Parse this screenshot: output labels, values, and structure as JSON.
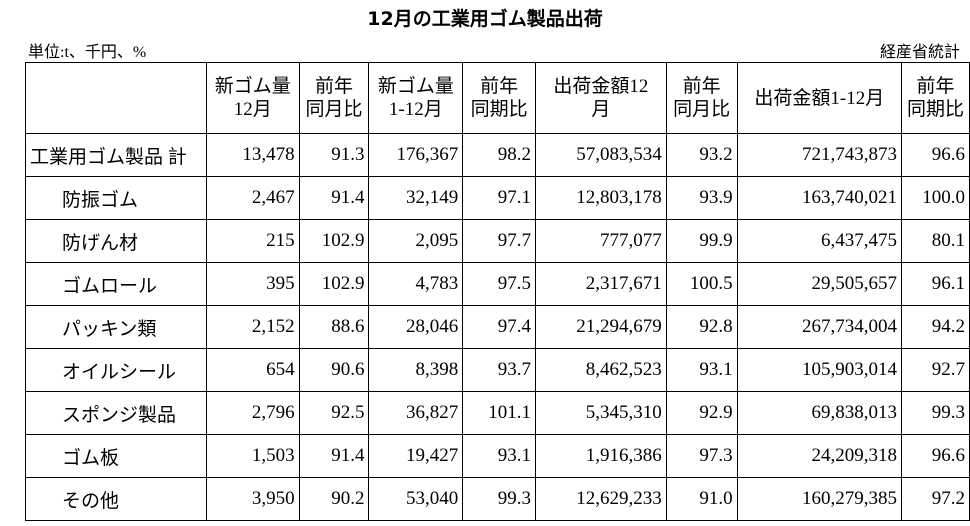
{
  "header": {
    "title": "12月の工業用ゴム製品出荷",
    "unit": "単位:t、千円、%",
    "source": "経産省統計"
  },
  "table": {
    "columns": [
      "",
      "新ゴム量\n12月",
      "前年\n同月比",
      "新ゴム量\n1-12月",
      "前年\n同期比",
      "出荷金額12\n月",
      "前年\n同月比",
      "出荷金額1-12月",
      "前年\n同期比"
    ],
    "rows": [
      [
        "工業用ゴム製品 計",
        "13,478",
        "91.3",
        "176,367",
        "98.2",
        "57,083,534",
        "93.2",
        "721,743,873",
        "96.6"
      ],
      [
        "防振ゴム",
        "2,467",
        "91.4",
        "32,149",
        "97.1",
        "12,803,178",
        "93.9",
        "163,740,021",
        "100.0"
      ],
      [
        "防げん材",
        "215",
        "102.9",
        "2,095",
        "97.7",
        "777,077",
        "99.9",
        "6,437,475",
        "80.1"
      ],
      [
        "ゴムロール",
        "395",
        "102.9",
        "4,783",
        "97.5",
        "2,317,671",
        "100.5",
        "29,505,657",
        "96.1"
      ],
      [
        "パッキン類",
        "2,152",
        "88.6",
        "28,046",
        "97.4",
        "21,294,679",
        "92.8",
        "267,734,004",
        "94.2"
      ],
      [
        "オイルシール",
        "654",
        "90.6",
        "8,398",
        "93.7",
        "8,462,523",
        "93.1",
        "105,903,014",
        "92.7"
      ],
      [
        "スポンジ製品",
        "2,796",
        "92.5",
        "36,827",
        "101.1",
        "5,345,310",
        "92.9",
        "69,838,013",
        "99.3"
      ],
      [
        "ゴム板",
        "1,503",
        "91.4",
        "19,427",
        "93.1",
        "1,916,386",
        "97.3",
        "24,209,318",
        "96.6"
      ],
      [
        "その他",
        "3,950",
        "90.2",
        "53,040",
        "99.3",
        "12,629,233",
        "91.0",
        "160,279,385",
        "97.2"
      ]
    ]
  }
}
